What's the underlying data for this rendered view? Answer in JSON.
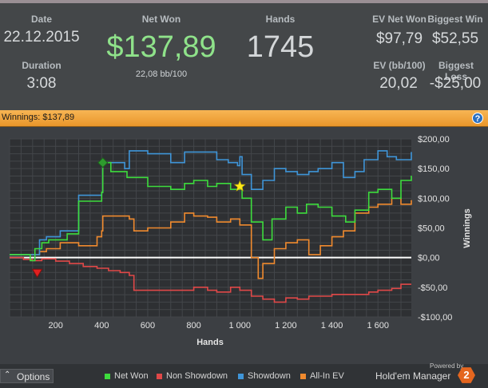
{
  "stats": {
    "date": {
      "label": "Date",
      "value": "22.12.2015"
    },
    "duration": {
      "label": "Duration",
      "value": "3:08"
    },
    "net_won": {
      "label": "Net Won",
      "value": "$137,89",
      "sub": "22,08 bb/100"
    },
    "hands": {
      "label": "Hands",
      "value": "1745"
    },
    "ev_net_won": {
      "label": "EV Net Won",
      "value": "$97,79"
    },
    "biggest_win": {
      "label": "Biggest Win",
      "value": "$52,55"
    },
    "ev_bb100": {
      "label": "EV (bb/100)",
      "value": "20,02"
    },
    "biggest_loss": {
      "label": "Biggest Loss",
      "value": "-$25,00"
    }
  },
  "banner": {
    "text": "Winnings: $137,89",
    "help": "?"
  },
  "footer": {
    "options_label": "Options",
    "powered_by": "Powered by",
    "brand": "Hold'em Manager",
    "brand_num": "2"
  },
  "colors": {
    "net_won": "#3ddc3d",
    "non_showdown": "#e04848",
    "showdown": "#3f95d8",
    "all_in_ev": "#f08a2e",
    "banner": "#f0a540",
    "positive": "#8fe28a"
  },
  "chart_data": {
    "type": "line",
    "xlabel": "Hands",
    "ylabel": "Winnings",
    "xlim": [
      0,
      1745
    ],
    "ylim": [
      -100,
      200
    ],
    "grid": true,
    "legend_position": "bottom",
    "x_ticks": [
      200,
      400,
      600,
      800,
      1000,
      1200,
      1400,
      1600
    ],
    "x_tick_labels": [
      "200",
      "400",
      "600",
      "800",
      "1 000",
      "1 200",
      "1 400",
      "1 600"
    ],
    "y_ticks": [
      -100,
      -50,
      0,
      50,
      100,
      150,
      200
    ],
    "y_tick_labels": [
      "-$100,00",
      "-$50,00",
      "$0,00",
      "$50,00",
      "$100,00",
      "$150,00",
      "$200,00"
    ],
    "series": [
      {
        "name": "Net Won",
        "x": [
          0,
          40,
          90,
          110,
          140,
          170,
          250,
          300,
          370,
          400,
          405,
          440,
          510,
          600,
          700,
          760,
          800,
          860,
          900,
          960,
          1000,
          1010,
          1050,
          1100,
          1140,
          1200,
          1250,
          1290,
          1340,
          1400,
          1460,
          1500,
          1560,
          1600,
          1660,
          1700,
          1745
        ],
        "y": [
          5,
          5,
          -5,
          15,
          25,
          30,
          40,
          95,
          95,
          110,
          160,
          145,
          135,
          120,
          115,
          125,
          130,
          120,
          125,
          115,
          122,
          100,
          60,
          30,
          65,
          85,
          75,
          90,
          85,
          70,
          60,
          80,
          110,
          115,
          100,
          130,
          138
        ]
      },
      {
        "name": "Non Showdown",
        "x": [
          0,
          60,
          100,
          140,
          200,
          260,
          320,
          380,
          430,
          480,
          520,
          540,
          600,
          700,
          800,
          860,
          900,
          960,
          1000,
          1050,
          1100,
          1150,
          1200,
          1250,
          1300,
          1400,
          1500,
          1560,
          1600,
          1660,
          1700,
          1745
        ],
        "y": [
          0,
          -3,
          -5,
          -2,
          -6,
          -10,
          -15,
          -18,
          -22,
          -25,
          -30,
          -55,
          -55,
          -55,
          -50,
          -55,
          -58,
          -50,
          -55,
          -65,
          -70,
          -75,
          -68,
          -70,
          -65,
          -62,
          -62,
          -58,
          -55,
          -52,
          -45,
          -45
        ]
      },
      {
        "name": "Showdown",
        "x": [
          0,
          90,
          130,
          160,
          220,
          300,
          400,
          405,
          500,
          520,
          600,
          700,
          760,
          860,
          900,
          950,
          990,
          1000,
          1010,
          1050,
          1100,
          1150,
          1200,
          1250,
          1300,
          1340,
          1400,
          1450,
          1500,
          1540,
          1600,
          1640,
          1680,
          1745
        ],
        "y": [
          5,
          5,
          30,
          35,
          45,
          105,
          110,
          160,
          150,
          180,
          175,
          160,
          178,
          178,
          165,
          160,
          155,
          170,
          140,
          115,
          130,
          150,
          145,
          140,
          145,
          150,
          160,
          135,
          145,
          165,
          180,
          170,
          165,
          178
        ]
      },
      {
        "name": "All-In EV",
        "x": [
          0,
          90,
          130,
          160,
          220,
          300,
          380,
          400,
          405,
          450,
          520,
          540,
          600,
          700,
          760,
          800,
          860,
          900,
          960,
          1000,
          1050,
          1080,
          1100,
          1150,
          1200,
          1250,
          1300,
          1350,
          1400,
          1450,
          1500,
          1560,
          1600,
          1660,
          1700,
          1745
        ],
        "y": [
          5,
          5,
          10,
          15,
          25,
          20,
          35,
          45,
          70,
          70,
          65,
          45,
          50,
          60,
          75,
          70,
          68,
          60,
          65,
          55,
          0,
          -35,
          -10,
          15,
          25,
          30,
          5,
          20,
          35,
          45,
          75,
          85,
          90,
          100,
          90,
          97
        ]
      }
    ],
    "markers": [
      {
        "type": "max",
        "x": 405,
        "y": 160,
        "color": "#2e9b2e"
      },
      {
        "type": "min",
        "x": 120,
        "y": -25,
        "color": "#e02020"
      },
      {
        "type": "star",
        "x": 1000,
        "y": 120,
        "color": "#ffe81a"
      }
    ]
  }
}
